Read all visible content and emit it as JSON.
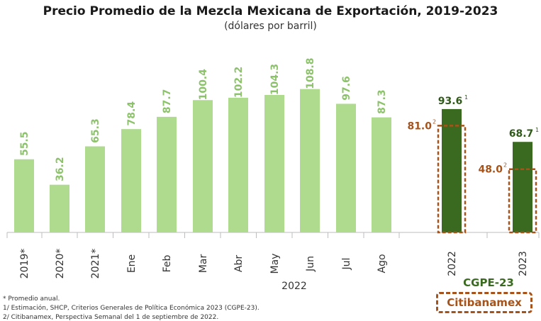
{
  "title": "Precio Promedio de la Mezcla Mexicana de Exportación, 2019-2023",
  "subtitle": "(dólares por barril)",
  "group_label": "2022",
  "legend": {
    "cgpe": "CGPE-23",
    "citi": "Citibanamex"
  },
  "footnotes": [
    "* Promedio anual.",
    "1/ Estimación, SHCP, Criterios Generales de Política Económica 2023 (CGPE-23).",
    "2/ Citibanamex, Perspectiva Semanal del 1 de septiembre de 2022."
  ],
  "colors": {
    "light_bar": "#aedb8e",
    "light_label": "#8cc36a",
    "dark_bar": "#3a6a1f",
    "dark_label": "#2f5a18",
    "citi": "#a5531a"
  },
  "chart_data": {
    "type": "bar",
    "categories": [
      "2019*",
      "2020*",
      "2021*",
      "Ene",
      "Feb",
      "Mar",
      "Abr",
      "May",
      "Jun",
      "Jul",
      "Ago",
      "2022",
      "2023"
    ],
    "values": [
      55.5,
      36.2,
      65.3,
      78.4,
      87.7,
      100.4,
      102.2,
      104.3,
      108.8,
      97.6,
      87.3,
      93.6,
      68.7
    ],
    "value_labels": [
      "55.5",
      "36.2",
      "65.3",
      "78.4",
      "87.7",
      "100.4",
      "102.2",
      "104.3",
      "108.8",
      "97.6",
      "87.3",
      "93.6",
      "68.7"
    ],
    "label_superscripts": [
      "",
      "",
      "",
      "",
      "",
      "",
      "",
      "",
      "",
      "",
      "",
      "1",
      "1"
    ],
    "series": [
      {
        "name": "CGPE-23",
        "values": [
          null,
          null,
          null,
          null,
          null,
          null,
          null,
          null,
          null,
          null,
          null,
          93.6,
          68.7
        ]
      },
      {
        "name": "Citibanamex",
        "values": [
          null,
          null,
          null,
          null,
          null,
          null,
          null,
          null,
          null,
          null,
          null,
          81.0,
          48.0
        ]
      }
    ],
    "citi_labels": [
      {
        "category": "2022",
        "value": 81.0,
        "label": "81.0",
        "sup": "2"
      },
      {
        "category": "2023",
        "value": 48.0,
        "label": "48.0",
        "sup": "2"
      }
    ],
    "ylim": [
      0,
      120
    ],
    "grid": false
  }
}
